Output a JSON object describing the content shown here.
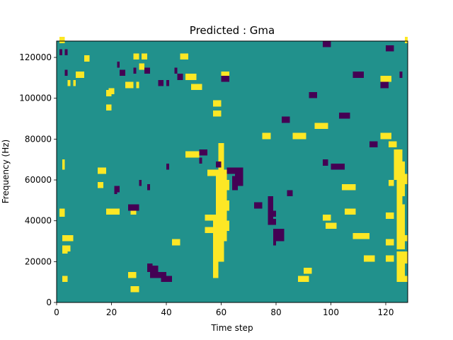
{
  "chart_data": {
    "type": "heatmap",
    "title": "Predicted : Gma",
    "xlabel": "Time step",
    "ylabel": "Frequency (Hz)",
    "xlim": [
      0,
      128
    ],
    "ylim": [
      0,
      128000
    ],
    "x_ticks": [
      0,
      20,
      40,
      60,
      80,
      100,
      120
    ],
    "y_ticks": [
      0,
      20000,
      40000,
      60000,
      80000,
      100000,
      120000
    ],
    "y_tick_labels": [
      "0",
      "20000",
      "40000",
      "60000",
      "80000",
      "100000",
      "120000"
    ],
    "colormap": [
      "#440154",
      "#21918c",
      "#fde725"
    ],
    "background_value": 1,
    "rows": 128,
    "row_height_hz": 1000,
    "low_cells": [
      [
        1,
        121
      ],
      [
        3,
        121
      ],
      [
        3,
        111
      ],
      [
        22,
        115
      ],
      [
        23,
        111
      ],
      [
        24,
        111
      ],
      [
        28,
        112
      ],
      [
        32,
        112
      ],
      [
        33,
        112
      ],
      [
        37,
        106
      ],
      [
        38,
        106
      ],
      [
        40,
        106
      ],
      [
        43,
        112
      ],
      [
        44,
        109
      ],
      [
        45,
        109
      ],
      [
        38,
        10
      ],
      [
        39,
        10
      ],
      [
        40,
        10
      ],
      [
        41,
        10
      ],
      [
        34,
        12
      ],
      [
        35,
        12
      ],
      [
        36,
        12
      ],
      [
        37,
        12
      ],
      [
        38,
        12
      ],
      [
        39,
        12
      ],
      [
        33,
        16
      ],
      [
        34,
        16
      ],
      [
        33,
        15
      ],
      [
        34,
        15
      ],
      [
        35,
        15
      ],
      [
        36,
        15
      ],
      [
        21,
        54
      ],
      [
        21,
        53
      ],
      [
        22,
        54
      ],
      [
        30,
        57
      ],
      [
        33,
        55
      ],
      [
        40,
        65
      ],
      [
        52,
        68
      ],
      [
        58,
        66
      ],
      [
        59,
        66
      ],
      [
        62,
        63
      ],
      [
        63,
        63
      ],
      [
        64,
        63
      ],
      [
        65,
        63
      ],
      [
        66,
        63
      ],
      [
        67,
        63
      ],
      [
        65,
        60
      ],
      [
        66,
        60
      ],
      [
        67,
        60
      ],
      [
        65,
        57
      ],
      [
        66,
        57
      ],
      [
        67,
        57
      ],
      [
        72,
        46
      ],
      [
        73,
        46
      ],
      [
        74,
        46
      ],
      [
        77,
        42
      ],
      [
        78,
        42
      ],
      [
        79,
        42
      ],
      [
        77,
        38
      ],
      [
        78,
        38
      ],
      [
        79,
        38
      ],
      [
        79,
        33
      ],
      [
        80,
        33
      ],
      [
        81,
        33
      ],
      [
        82,
        33
      ],
      [
        79,
        30
      ],
      [
        80,
        30
      ],
      [
        81,
        30
      ],
      [
        82,
        30
      ],
      [
        84,
        52
      ],
      [
        85,
        52
      ],
      [
        97,
        67
      ],
      [
        98,
        67
      ],
      [
        100,
        65
      ],
      [
        101,
        65
      ],
      [
        102,
        65
      ],
      [
        103,
        65
      ],
      [
        104,
        65
      ],
      [
        103,
        90
      ],
      [
        104,
        90
      ],
      [
        105,
        90
      ],
      [
        106,
        90
      ],
      [
        108,
        110
      ],
      [
        109,
        110
      ],
      [
        110,
        110
      ],
      [
        111,
        110
      ],
      [
        97,
        125
      ],
      [
        98,
        125
      ],
      [
        99,
        125
      ],
      [
        120,
        123
      ],
      [
        121,
        123
      ],
      [
        122,
        123
      ],
      [
        114,
        76
      ],
      [
        115,
        76
      ],
      [
        116,
        76
      ],
      [
        125,
        110
      ],
      [
        26,
        45
      ],
      [
        27,
        45
      ],
      [
        28,
        45
      ],
      [
        29,
        45
      ],
      [
        52,
        72
      ],
      [
        53,
        72
      ],
      [
        54,
        72
      ],
      [
        60,
        108
      ],
      [
        61,
        108
      ],
      [
        62,
        108
      ],
      [
        92,
        100
      ],
      [
        93,
        100
      ],
      [
        94,
        100
      ],
      [
        82,
        88
      ],
      [
        83,
        88
      ],
      [
        84,
        88
      ],
      [
        118,
        105
      ],
      [
        119,
        105
      ],
      [
        120,
        105
      ]
    ],
    "high_cells": [
      [
        1,
        127
      ],
      [
        2,
        127
      ],
      [
        2,
        65
      ],
      [
        2,
        66
      ],
      [
        2,
        67
      ],
      [
        2,
        24
      ],
      [
        3,
        24
      ],
      [
        2,
        25
      ],
      [
        3,
        25
      ],
      [
        4,
        25
      ],
      [
        2,
        10
      ],
      [
        3,
        10
      ],
      [
        1,
        42
      ],
      [
        2,
        42
      ],
      [
        1,
        43
      ],
      [
        2,
        43
      ],
      [
        2,
        30
      ],
      [
        3,
        30
      ],
      [
        4,
        30
      ],
      [
        5,
        30
      ],
      [
        4,
        106
      ],
      [
        6,
        106
      ],
      [
        7,
        110
      ],
      [
        8,
        110
      ],
      [
        9,
        110
      ],
      [
        10,
        118
      ],
      [
        11,
        118
      ],
      [
        18,
        94
      ],
      [
        19,
        94
      ],
      [
        18,
        101
      ],
      [
        19,
        101
      ],
      [
        19,
        102
      ],
      [
        20,
        102
      ],
      [
        25,
        105
      ],
      [
        26,
        105
      ],
      [
        27,
        105
      ],
      [
        29,
        105
      ],
      [
        28,
        119
      ],
      [
        29,
        119
      ],
      [
        31,
        119
      ],
      [
        32,
        119
      ],
      [
        30,
        114
      ],
      [
        31,
        114
      ],
      [
        45,
        119
      ],
      [
        46,
        119
      ],
      [
        47,
        119
      ],
      [
        47,
        109
      ],
      [
        48,
        109
      ],
      [
        49,
        109
      ],
      [
        50,
        109
      ],
      [
        49,
        104
      ],
      [
        50,
        104
      ],
      [
        51,
        104
      ],
      [
        52,
        104
      ],
      [
        57,
        91
      ],
      [
        58,
        91
      ],
      [
        59,
        91
      ],
      [
        57,
        96
      ],
      [
        58,
        96
      ],
      [
        59,
        96
      ],
      [
        47,
        71
      ],
      [
        48,
        71
      ],
      [
        49,
        71
      ],
      [
        50,
        71
      ],
      [
        51,
        71
      ],
      [
        55,
        62
      ],
      [
        56,
        62
      ],
      [
        57,
        62
      ],
      [
        58,
        62
      ],
      [
        59,
        62
      ],
      [
        54,
        40
      ],
      [
        55,
        40
      ],
      [
        56,
        40
      ],
      [
        57,
        40
      ],
      [
        58,
        40
      ],
      [
        54,
        34
      ],
      [
        55,
        34
      ],
      [
        56,
        34
      ],
      [
        42,
        28
      ],
      [
        43,
        28
      ],
      [
        44,
        28
      ],
      [
        27,
        43
      ],
      [
        28,
        43
      ],
      [
        27,
        5
      ],
      [
        28,
        5
      ],
      [
        29,
        5
      ],
      [
        15,
        56
      ],
      [
        16,
        56
      ],
      [
        18,
        43
      ],
      [
        19,
        43
      ],
      [
        20,
        43
      ],
      [
        21,
        43
      ],
      [
        22,
        43
      ],
      [
        15,
        63
      ],
      [
        16,
        63
      ],
      [
        17,
        63
      ],
      [
        26,
        12
      ],
      [
        27,
        12
      ],
      [
        28,
        12
      ],
      [
        60,
        110
      ],
      [
        61,
        110
      ],
      [
        62,
        110
      ],
      [
        75,
        80
      ],
      [
        76,
        80
      ],
      [
        77,
        80
      ],
      [
        86,
        80
      ],
      [
        87,
        80
      ],
      [
        88,
        80
      ],
      [
        89,
        80
      ],
      [
        90,
        80
      ],
      [
        94,
        85
      ],
      [
        95,
        85
      ],
      [
        96,
        85
      ],
      [
        97,
        85
      ],
      [
        98,
        85
      ],
      [
        88,
        10
      ],
      [
        89,
        10
      ],
      [
        90,
        10
      ],
      [
        91,
        10
      ],
      [
        90,
        14
      ],
      [
        91,
        14
      ],
      [
        92,
        14
      ],
      [
        97,
        40
      ],
      [
        98,
        40
      ],
      [
        99,
        40
      ],
      [
        98,
        36
      ],
      [
        99,
        36
      ],
      [
        100,
        36
      ],
      [
        101,
        36
      ],
      [
        105,
        43
      ],
      [
        106,
        43
      ],
      [
        107,
        43
      ],
      [
        108,
        43
      ],
      [
        104,
        55
      ],
      [
        105,
        55
      ],
      [
        106,
        55
      ],
      [
        107,
        55
      ],
      [
        108,
        55
      ],
      [
        108,
        31
      ],
      [
        109,
        31
      ],
      [
        110,
        31
      ],
      [
        111,
        31
      ],
      [
        112,
        31
      ],
      [
        113,
        31
      ],
      [
        112,
        20
      ],
      [
        113,
        20
      ],
      [
        114,
        20
      ],
      [
        115,
        20
      ],
      [
        120,
        20
      ],
      [
        121,
        20
      ],
      [
        122,
        20
      ],
      [
        120,
        28
      ],
      [
        121,
        28
      ],
      [
        122,
        28
      ],
      [
        120,
        41
      ],
      [
        121,
        41
      ],
      [
        122,
        41
      ],
      [
        121,
        57
      ],
      [
        122,
        57
      ],
      [
        121,
        76
      ],
      [
        122,
        76
      ],
      [
        123,
        76
      ],
      [
        118,
        80
      ],
      [
        119,
        80
      ],
      [
        120,
        80
      ],
      [
        121,
        80
      ],
      [
        124,
        64
      ],
      [
        125,
        64
      ],
      [
        126,
        64
      ],
      [
        124,
        66
      ],
      [
        125,
        66
      ],
      [
        126,
        66
      ],
      [
        125,
        60
      ],
      [
        126,
        60
      ],
      [
        127,
        60
      ],
      [
        124,
        58
      ],
      [
        125,
        58
      ],
      [
        126,
        58
      ],
      [
        127,
        58
      ],
      [
        124,
        52
      ],
      [
        125,
        52
      ],
      [
        126,
        52
      ],
      [
        124,
        43
      ],
      [
        125,
        43
      ],
      [
        126,
        43
      ],
      [
        124,
        38
      ],
      [
        125,
        38
      ],
      [
        126,
        38
      ],
      [
        124,
        36
      ],
      [
        125,
        36
      ],
      [
        126,
        36
      ],
      [
        124,
        33
      ],
      [
        125,
        33
      ],
      [
        126,
        33
      ],
      [
        125,
        30
      ],
      [
        126,
        30
      ],
      [
        127,
        30
      ],
      [
        124,
        28
      ],
      [
        125,
        28
      ],
      [
        126,
        28
      ],
      [
        124,
        26
      ],
      [
        125,
        26
      ],
      [
        126,
        26
      ],
      [
        125,
        22
      ],
      [
        126,
        22
      ],
      [
        127,
        22
      ],
      [
        124,
        19
      ],
      [
        125,
        19
      ],
      [
        126,
        19
      ],
      [
        127,
        19
      ],
      [
        124,
        17
      ],
      [
        125,
        17
      ],
      [
        126,
        17
      ],
      [
        124,
        14
      ],
      [
        125,
        14
      ],
      [
        126,
        14
      ],
      [
        124,
        12
      ],
      [
        125,
        12
      ],
      [
        126,
        12
      ],
      [
        124,
        10
      ],
      [
        125,
        10
      ],
      [
        126,
        10
      ],
      [
        127,
        10
      ],
      [
        124,
        45
      ],
      [
        125,
        45
      ],
      [
        126,
        45
      ],
      [
        124,
        48
      ],
      [
        125,
        48
      ],
      [
        124,
        50
      ],
      [
        125,
        50
      ],
      [
        124,
        55
      ],
      [
        125,
        55
      ],
      [
        124,
        62
      ],
      [
        125,
        62
      ],
      [
        124,
        63
      ],
      [
        125,
        63
      ],
      [
        124,
        56
      ],
      [
        125,
        56
      ],
      [
        127,
        127
      ],
      [
        118,
        108
      ],
      [
        119,
        108
      ],
      [
        120,
        108
      ],
      [
        121,
        108
      ]
    ],
    "high_bands": [
      [
        [
          57,
          12
        ],
        [
          59,
          43
        ]
      ],
      [
        [
          58,
          20
        ],
        [
          61,
          30
        ]
      ],
      [
        [
          58,
          30
        ],
        [
          62,
          35
        ]
      ],
      [
        [
          58,
          35
        ],
        [
          63,
          40
        ]
      ],
      [
        [
          58,
          40
        ],
        [
          62,
          45
        ]
      ],
      [
        [
          58,
          45
        ],
        [
          63,
          50
        ]
      ],
      [
        [
          58,
          50
        ],
        [
          62,
          55
        ]
      ],
      [
        [
          58,
          55
        ],
        [
          63,
          60
        ]
      ],
      [
        [
          58,
          60
        ],
        [
          62,
          65
        ]
      ],
      [
        [
          59,
          65
        ],
        [
          61,
          70
        ]
      ],
      [
        [
          59,
          70
        ],
        [
          61,
          78
        ]
      ],
      [
        [
          124,
          10
        ],
        [
          127,
          15
        ]
      ],
      [
        [
          124,
          20
        ],
        [
          127,
          25
        ]
      ],
      [
        [
          124,
          30
        ],
        [
          127,
          35
        ]
      ],
      [
        [
          124,
          40
        ],
        [
          127,
          46
        ]
      ],
      [
        [
          124,
          46
        ],
        [
          126,
          55
        ]
      ],
      [
        [
          124,
          55
        ],
        [
          127,
          66
        ]
      ],
      [
        [
          123,
          60
        ],
        [
          126,
          75
        ]
      ]
    ],
    "low_bands": [
      [
        [
          64,
          55
        ],
        [
          66,
          62
        ]
      ],
      [
        [
          77,
          40
        ],
        [
          79,
          52
        ]
      ],
      [
        [
          79,
          28
        ],
        [
          80,
          36
        ]
      ]
    ]
  }
}
